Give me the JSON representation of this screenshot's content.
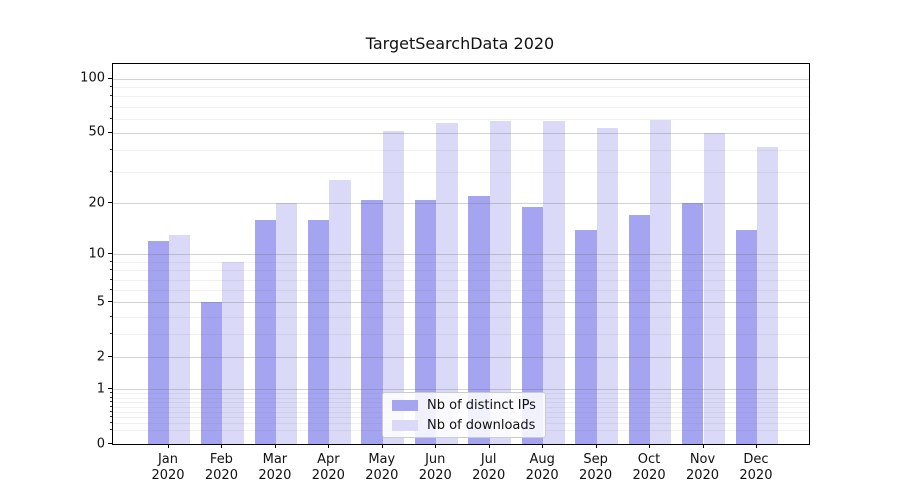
{
  "title": "TargetSearchData 2020",
  "chart_data": {
    "type": "bar",
    "title": "TargetSearchData 2020",
    "categories": [
      "Jan",
      "Feb",
      "Mar",
      "Apr",
      "May",
      "Jun",
      "Jul",
      "Aug",
      "Sep",
      "Oct",
      "Nov",
      "Dec"
    ],
    "x_tick_year": "2020",
    "series": [
      {
        "name": "Nb of distinct IPs",
        "color": "#a4a4f0",
        "values": [
          12,
          5,
          16,
          16,
          21,
          21,
          22,
          19,
          14,
          17,
          20,
          14
        ]
      },
      {
        "name": "Nb of downloads",
        "color": "#dadaf8",
        "values": [
          13,
          9,
          20,
          27,
          51,
          57,
          58,
          58,
          53,
          59,
          50,
          42
        ]
      }
    ],
    "xlabel": "",
    "ylabel": "",
    "yscale": "log1p",
    "ylim": [
      0,
      121
    ],
    "y_major_ticks": [
      0,
      1,
      2,
      5,
      10,
      20,
      50,
      100
    ],
    "y_minor_ticks": [
      0.2,
      0.3,
      0.4,
      0.5,
      0.6,
      0.7,
      0.8,
      0.9,
      3,
      4,
      6,
      7,
      8,
      9,
      30,
      40,
      60,
      70,
      80,
      90
    ],
    "grid": true,
    "legend_position": "lower center",
    "background_color": "#ffffff",
    "spine_color": "#000000"
  }
}
